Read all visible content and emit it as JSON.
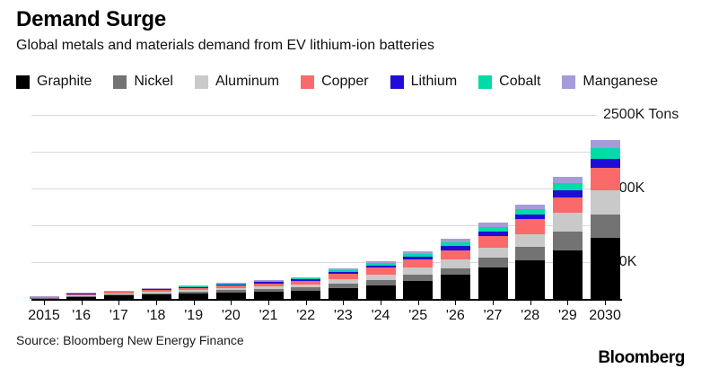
{
  "header": {
    "title": "Demand Surge",
    "subtitle": "Global metals and materials demand from EV lithium-ion batteries"
  },
  "legend": [
    {
      "label": "Graphite",
      "color": "#000000"
    },
    {
      "label": "Nickel",
      "color": "#737373"
    },
    {
      "label": "Aluminum",
      "color": "#c9c9c9"
    },
    {
      "label": "Copper",
      "color": "#fa6a6a"
    },
    {
      "label": "Lithium",
      "color": "#1e0dd8"
    },
    {
      "label": "Cobalt",
      "color": "#00dba8"
    },
    {
      "label": "Manganese",
      "color": "#a49bd8"
    }
  ],
  "chart_data": {
    "type": "bar",
    "stacked": true,
    "title": "Demand Surge",
    "subtitle": "Global metals and materials demand from EV lithium-ion batteries",
    "unit": "K Tons",
    "legend_position": "top",
    "grid": true,
    "categories": [
      "2015",
      "'16",
      "'17",
      "'18",
      "'19",
      "'20",
      "'21",
      "'22",
      "'23",
      "'24",
      "'25",
      "'26",
      "'27",
      "'28",
      "'29",
      "2030"
    ],
    "series": [
      {
        "name": "Graphite",
        "color": "#000000",
        "values": [
          12,
          30,
          45,
          60,
          73,
          89,
          102,
          114,
          150,
          179,
          244,
          329,
          422,
          528,
          659,
          829
        ]
      },
      {
        "name": "Nickel",
        "color": "#737373",
        "values": [
          4,
          9,
          13,
          19,
          24,
          28,
          36,
          41,
          57,
          73,
          85,
          85,
          134,
          179,
          251,
          317
        ]
      },
      {
        "name": "Aluminum",
        "color": "#c9c9c9",
        "values": [
          4,
          10,
          14,
          20,
          23,
          28,
          33,
          41,
          61,
          81,
          94,
          126,
          134,
          174,
          256,
          333
        ]
      },
      {
        "name": "Copper",
        "color": "#fa6a6a",
        "values": [
          6,
          22,
          26,
          30,
          30,
          34,
          42,
          49,
          73,
          98,
          118,
          120,
          163,
          204,
          216,
          297
        ]
      },
      {
        "name": "Lithium",
        "color": "#1e0dd8",
        "values": [
          2,
          4,
          6,
          8,
          14,
          16,
          18,
          20,
          20,
          24,
          28,
          57,
          61,
          61,
          98,
          122
        ]
      },
      {
        "name": "Cobalt",
        "color": "#00dba8",
        "values": [
          2,
          5,
          8,
          10,
          12,
          18,
          20,
          20,
          28,
          28,
          37,
          53,
          61,
          73,
          94,
          151
        ]
      },
      {
        "name": "Manganese",
        "color": "#a49bd8",
        "values": [
          1,
          2,
          2,
          3,
          4,
          5,
          6,
          12,
          24,
          33,
          37,
          45,
          56,
          56,
          89,
          114
        ]
      }
    ],
    "ylim": [
      0,
      2500
    ],
    "gridline_values": [
      500,
      1000,
      1500,
      2000,
      2500
    ],
    "y_axis_labels": [
      {
        "value": 2500,
        "text": "2500K Tons"
      },
      {
        "value": 1500,
        "text": "1500K"
      },
      {
        "value": 500,
        "text": "500K"
      }
    ]
  },
  "footer": {
    "source": "Source: Bloomberg New Energy Finance",
    "logo": "Bloomberg"
  }
}
